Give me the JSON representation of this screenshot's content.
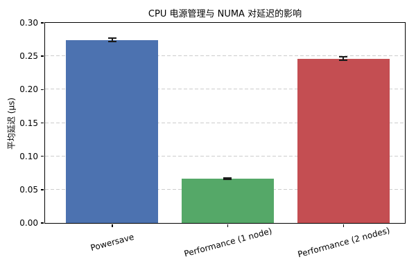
{
  "chart_data": {
    "type": "bar",
    "title": "CPU 电源管理与 NUMA 对延迟的影响",
    "ylabel": "平均延迟 (µs)",
    "xlabel": "",
    "categories": [
      "Powersave",
      "Performance (1 node)",
      "Performance (2 nodes)"
    ],
    "values": [
      0.274,
      0.066,
      0.246
    ],
    "errors": [
      0.003,
      0.001,
      0.003
    ],
    "bar_colors": [
      "#4C72B0",
      "#55A868",
      "#C44E52"
    ],
    "ylim": [
      0,
      0.3
    ],
    "ytick_labels": [
      "0.00",
      "0.05",
      "0.10",
      "0.15",
      "0.20",
      "0.25",
      "0.30"
    ],
    "grid": "horizontal-dashed",
    "legend_position": "none"
  },
  "style": {
    "background": "#ffffff",
    "grid_color": "#cccccc",
    "spine_color": "#000000",
    "tick_color": "#000000",
    "text_color": "#000000",
    "error_color": "#1a1a1a"
  }
}
